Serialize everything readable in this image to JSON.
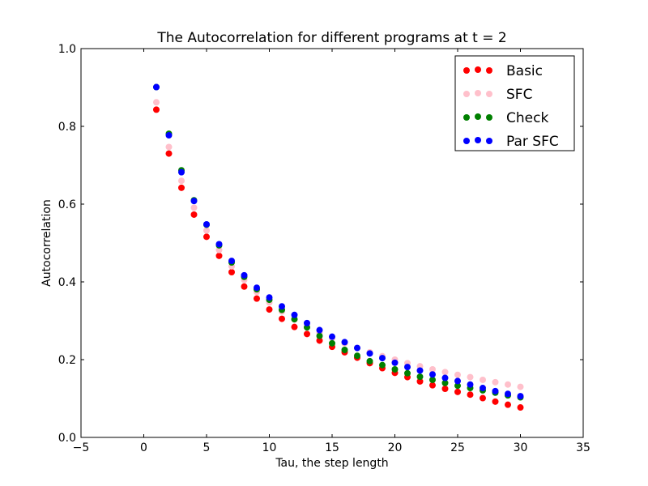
{
  "chart_data": {
    "type": "scatter",
    "title": "The Autocorrelation for different programs at t = 2",
    "xlabel": "Tau, the step length",
    "ylabel": "Autocorrelation",
    "xlim": [
      -5,
      35
    ],
    "ylim": [
      0.0,
      1.0
    ],
    "xticks": [
      -5,
      0,
      5,
      10,
      15,
      20,
      25,
      30,
      35
    ],
    "yticks": [
      0.0,
      0.2,
      0.4,
      0.6,
      0.8,
      1.0
    ],
    "xtick_labels": [
      "−5",
      "0",
      "5",
      "10",
      "15",
      "20",
      "25",
      "30",
      "35"
    ],
    "ytick_labels": [
      "0.0",
      "0.2",
      "0.4",
      "0.6",
      "0.8",
      "1.0"
    ],
    "grid": false,
    "legend_position": "top-right",
    "x": [
      1,
      2,
      3,
      4,
      5,
      6,
      7,
      8,
      9,
      10,
      11,
      12,
      13,
      14,
      15,
      16,
      17,
      18,
      19,
      20,
      21,
      22,
      23,
      24,
      25,
      26,
      27,
      28,
      29,
      30
    ],
    "series": [
      {
        "name": "Basic",
        "color": "#ff0000",
        "values": [
          0.843,
          0.73,
          0.642,
          0.573,
          0.516,
          0.467,
          0.425,
          0.388,
          0.357,
          0.329,
          0.305,
          0.284,
          0.266,
          0.249,
          0.233,
          0.219,
          0.205,
          0.191,
          0.178,
          0.166,
          0.155,
          0.144,
          0.134,
          0.125,
          0.117,
          0.11,
          0.101,
          0.092,
          0.084,
          0.077
        ]
      },
      {
        "name": "SFC",
        "color": "#ffc0cb",
        "values": [
          0.862,
          0.747,
          0.66,
          0.591,
          0.532,
          0.482,
          0.44,
          0.405,
          0.374,
          0.347,
          0.324,
          0.303,
          0.285,
          0.269,
          0.255,
          0.242,
          0.23,
          0.219,
          0.209,
          0.2,
          0.191,
          0.183,
          0.175,
          0.168,
          0.161,
          0.155,
          0.148,
          0.142,
          0.136,
          0.13
        ]
      },
      {
        "name": "Check",
        "color": "#008000",
        "values": [
          0.901,
          0.781,
          0.687,
          0.61,
          0.547,
          0.494,
          0.45,
          0.413,
          0.381,
          0.354,
          0.328,
          0.304,
          0.283,
          0.261,
          0.242,
          0.225,
          0.21,
          0.196,
          0.186,
          0.175,
          0.165,
          0.156,
          0.148,
          0.14,
          0.133,
          0.127,
          0.121,
          0.115,
          0.108,
          0.103
        ]
      },
      {
        "name": "Par SFC",
        "color": "#0000ff",
        "values": [
          0.901,
          0.777,
          0.682,
          0.608,
          0.548,
          0.497,
          0.454,
          0.417,
          0.385,
          0.36,
          0.337,
          0.315,
          0.294,
          0.276,
          0.259,
          0.245,
          0.23,
          0.216,
          0.204,
          0.192,
          0.181,
          0.172,
          0.162,
          0.153,
          0.145,
          0.136,
          0.127,
          0.119,
          0.112,
          0.106
        ]
      }
    ]
  }
}
